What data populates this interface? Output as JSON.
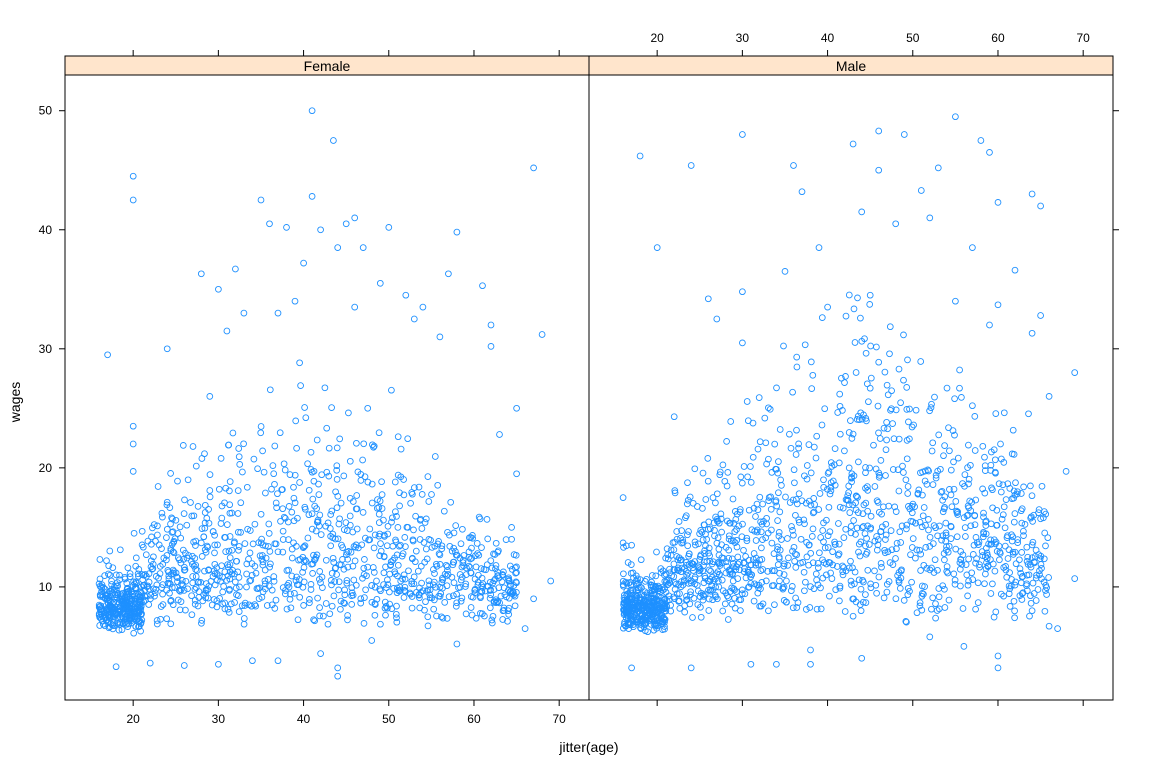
{
  "chart_data": {
    "type": "scatter",
    "title": "",
    "xlabel": "jitter(age)",
    "ylabel": "wages",
    "xlim": [
      12,
      73.5
    ],
    "ylim": [
      0.5,
      53
    ],
    "xticks": [
      20,
      30,
      40,
      50,
      60,
      70
    ],
    "yticks": [
      10,
      20,
      30,
      40,
      50
    ],
    "grid": false,
    "legend": "none",
    "point_color": "#1e90ff",
    "strip_color": "#ffe5cc",
    "panels": [
      {
        "name": "Female",
        "label": "Female",
        "outliers": [
          [
            41,
            50
          ],
          [
            43.5,
            47.5
          ],
          [
            20,
            44.5
          ],
          [
            20,
            42.5
          ],
          [
            35,
            42.5
          ],
          [
            41,
            42.8
          ],
          [
            46,
            41
          ],
          [
            42,
            40
          ],
          [
            38,
            40.2
          ],
          [
            50,
            40.2
          ],
          [
            58,
            39.8
          ],
          [
            45,
            40.5
          ],
          [
            67,
            45.2
          ],
          [
            17,
            29.5
          ],
          [
            20,
            23.5
          ],
          [
            20,
            22
          ],
          [
            20,
            19.7
          ],
          [
            24,
            30
          ],
          [
            28,
            36.3
          ],
          [
            30,
            35
          ],
          [
            32,
            36.7
          ],
          [
            36,
            40.5
          ],
          [
            40,
            37.2
          ],
          [
            44,
            38.5
          ],
          [
            47,
            38.5
          ],
          [
            49,
            35.5
          ],
          [
            52,
            34.5
          ],
          [
            57,
            36.3
          ],
          [
            61,
            35.3
          ],
          [
            62,
            32
          ],
          [
            68,
            31.2
          ],
          [
            69,
            10.5
          ],
          [
            67,
            9
          ],
          [
            66,
            6.5
          ],
          [
            44,
            2.5
          ],
          [
            44,
            3.2
          ],
          [
            26,
            3.4
          ],
          [
            18,
            3.3
          ],
          [
            22,
            3.6
          ],
          [
            30,
            3.5
          ],
          [
            34,
            3.8
          ],
          [
            37,
            3.8
          ],
          [
            42,
            4.4
          ],
          [
            48,
            5.5
          ],
          [
            58,
            5.2
          ],
          [
            64,
            8
          ],
          [
            65,
            19.5
          ],
          [
            63,
            22.8
          ],
          [
            65,
            25
          ],
          [
            62,
            30.2
          ],
          [
            56,
            31
          ],
          [
            54,
            33.5
          ],
          [
            53,
            32.5
          ],
          [
            46,
            33.5
          ],
          [
            39,
            34
          ],
          [
            37,
            33
          ],
          [
            33,
            33
          ],
          [
            31,
            31.5
          ],
          [
            29,
            26
          ]
        ],
        "cloud": {
          "x_range": [
            16,
            65
          ],
          "y_base": 6.5,
          "y_spread": 8,
          "peak_age": 40,
          "count": 1350,
          "seed": 11
        }
      },
      {
        "name": "Male",
        "label": "Male",
        "outliers": [
          [
            55,
            49.5
          ],
          [
            46,
            48.3
          ],
          [
            30,
            48
          ],
          [
            49,
            48
          ],
          [
            58,
            47.5
          ],
          [
            59,
            46.5
          ],
          [
            18,
            46.2
          ],
          [
            24,
            45.4
          ],
          [
            36,
            45.4
          ],
          [
            43,
            47.2
          ],
          [
            46,
            45
          ],
          [
            53,
            45.2
          ],
          [
            64,
            43
          ],
          [
            65,
            42
          ],
          [
            60,
            42.3
          ],
          [
            37,
            43.2
          ],
          [
            51,
            43.3
          ],
          [
            20,
            38.5
          ],
          [
            26,
            34.2
          ],
          [
            30,
            34.8
          ],
          [
            35,
            36.5
          ],
          [
            39,
            38.5
          ],
          [
            44,
            41.5
          ],
          [
            48,
            40.5
          ],
          [
            52,
            41
          ],
          [
            57,
            38.5
          ],
          [
            62,
            36.6
          ],
          [
            69,
            28
          ],
          [
            68,
            19.7
          ],
          [
            69,
            10.7
          ],
          [
            67,
            6.5
          ],
          [
            66,
            6.7
          ],
          [
            64,
            8
          ],
          [
            60,
            3.2
          ],
          [
            60,
            4.2
          ],
          [
            56,
            5
          ],
          [
            52,
            5.8
          ],
          [
            44,
            4
          ],
          [
            38,
            3.5
          ],
          [
            38,
            4.7
          ],
          [
            31,
            3.5
          ],
          [
            34,
            3.5
          ],
          [
            24,
            3.2
          ],
          [
            17,
            3.2
          ],
          [
            16,
            17.5
          ],
          [
            16,
            13.7
          ],
          [
            17,
            13.5
          ],
          [
            22,
            24.3
          ],
          [
            27,
            32.5
          ],
          [
            30,
            30.5
          ],
          [
            40,
            33.5
          ],
          [
            45,
            34.5
          ],
          [
            55,
            34
          ],
          [
            60,
            33.7
          ],
          [
            65,
            32.8
          ],
          [
            66,
            26
          ],
          [
            64,
            31.3
          ],
          [
            59,
            32
          ]
        ],
        "cloud": {
          "x_range": [
            16,
            66
          ],
          "y_base": 7,
          "y_spread": 11,
          "peak_age": 45,
          "count": 1550,
          "seed": 29
        }
      }
    ]
  }
}
